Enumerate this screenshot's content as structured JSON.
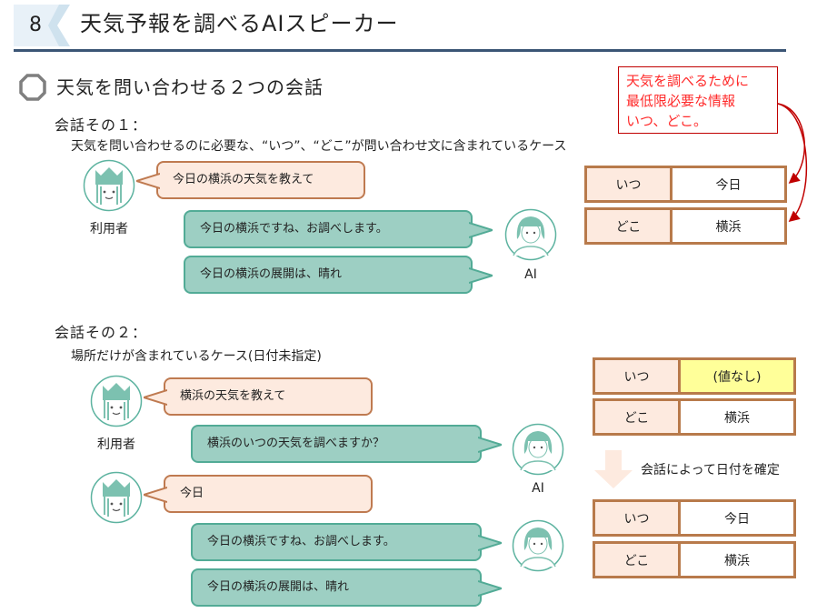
{
  "header": {
    "slide_number": "8",
    "title": "天気予報を調べるAIスピーカー"
  },
  "section_heading": "天気を問い合わせる２つの会話",
  "note": {
    "lines": [
      "天気を調べるために",
      "最低限必要な情報",
      "いつ、どこ。"
    ]
  },
  "conversation1": {
    "title": "会話その１：",
    "subtitle": "天気を問い合わせるのに必要な、“いつ”、“どこ”が問い合わせ文に含まれているケース",
    "user_label": "利用者",
    "ai_label": "AI",
    "messages": [
      {
        "speaker": "user",
        "text": "今日の横浜の天気を教えて"
      },
      {
        "speaker": "ai",
        "text": "今日の横浜ですね、お調べします。"
      },
      {
        "speaker": "ai",
        "text": "今日の横浜の展開は、晴れ"
      }
    ],
    "slots": [
      {
        "key": "いつ",
        "value": "今日"
      },
      {
        "key": "どこ",
        "value": "横浜"
      }
    ]
  },
  "conversation2": {
    "title": "会話その２：",
    "subtitle": "場所だけが含まれているケース(日付未指定)",
    "user_label": "利用者",
    "ai_label": "AI",
    "messages": [
      {
        "speaker": "user",
        "text": "横浜の天気を教えて"
      },
      {
        "speaker": "ai",
        "text": "横浜のいつの天気を調べますか？"
      },
      {
        "speaker": "user",
        "text": "今日"
      },
      {
        "speaker": "ai",
        "text": "今日の横浜ですね、お調べします。"
      },
      {
        "speaker": "ai",
        "text": "今日の横浜の展開は、晴れ"
      }
    ],
    "slots_before": [
      {
        "key": "いつ",
        "value": "(値なし)"
      },
      {
        "key": "どこ",
        "value": "横浜"
      }
    ],
    "arrow_caption": "会話によって日付を確定",
    "slots_after": [
      {
        "key": "いつ",
        "value": "今日"
      },
      {
        "key": "どこ",
        "value": "横浜"
      }
    ]
  },
  "colors": {
    "user_bubble": "#fdeadf",
    "ai_bubble": "#9dcfc3",
    "slot_border": "#b87a4b",
    "empty_value": "#ffff99",
    "note_red": "#ff2a2a",
    "rule": "#3b5575"
  }
}
